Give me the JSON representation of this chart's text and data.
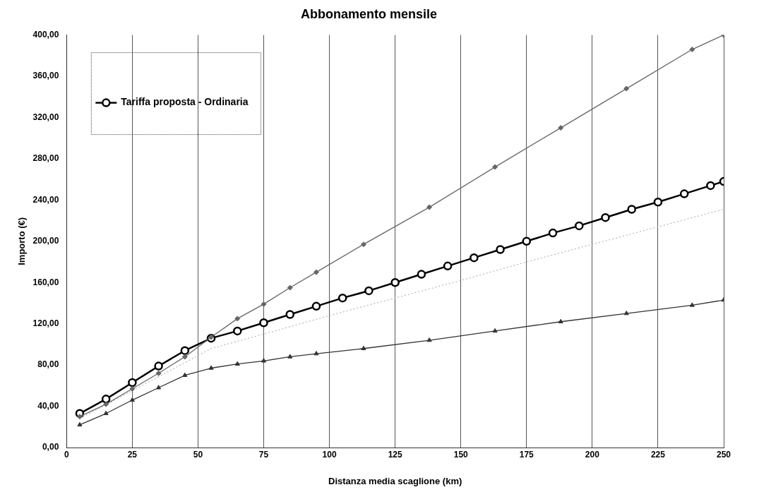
{
  "chart_data": {
    "type": "line",
    "title": "Abbonamento mensile",
    "xlabel": "Distanza media scaglione (km)",
    "ylabel": "Importo (€)",
    "xlim": [
      0,
      250
    ],
    "xticks": [
      0,
      25,
      50,
      75,
      100,
      125,
      150,
      175,
      200,
      225,
      250
    ],
    "ylim": [
      0,
      400
    ],
    "yticks": [
      {
        "value": 0,
        "label": "0,00"
      },
      {
        "value": 40,
        "label": "40,00"
      },
      {
        "value": 80,
        "label": "80,00"
      },
      {
        "value": 120,
        "label": "120,00"
      },
      {
        "value": 160,
        "label": "160,00"
      },
      {
        "value": 200,
        "label": "200,00"
      },
      {
        "value": 240,
        "label": "240,00"
      },
      {
        "value": 280,
        "label": "280,00"
      },
      {
        "value": 320,
        "label": "320,00"
      },
      {
        "value": 360,
        "label": "360,00"
      },
      {
        "value": 400,
        "label": "400,00"
      }
    ],
    "grid": "x",
    "legend": "top left",
    "series": [
      {
        "color": "#666666",
        "marker": "diamond",
        "x": [
          5,
          15,
          25,
          35,
          45,
          55,
          65,
          75,
          85,
          95,
          113,
          138,
          163,
          188,
          213,
          238,
          250
        ],
        "values": [
          30,
          42,
          57,
          72,
          88,
          107,
          125,
          139,
          155,
          170,
          197,
          233,
          272,
          310,
          348,
          386,
          400
        ]
      },
      {
        "color": "#333333",
        "marker": "triangle",
        "x": [
          5,
          15,
          25,
          35,
          45,
          55,
          65,
          75,
          85,
          95,
          113,
          138,
          163,
          188,
          213,
          238,
          250
        ],
        "values": [
          22,
          33,
          46,
          58,
          70,
          77,
          81,
          84,
          88,
          91,
          96,
          104,
          113,
          122,
          130,
          138,
          143
        ]
      },
      {
        "name": "Tariffa proposta - Ordinaria",
        "color": "#000000",
        "marker": "circle",
        "x": [
          5,
          15,
          25,
          35,
          45,
          55,
          65,
          75,
          85,
          95,
          105,
          115,
          125,
          135,
          145,
          155,
          165,
          175,
          185,
          195,
          205,
          215,
          225,
          235,
          245,
          250
        ],
        "values": [
          33,
          47,
          63,
          79,
          94,
          106,
          113,
          121,
          129,
          137,
          145,
          152,
          160,
          168,
          176,
          184,
          192,
          200,
          208,
          215,
          223,
          231,
          238,
          246,
          254,
          258
        ]
      },
      {
        "color": "#bbbbbb",
        "marker": "none",
        "line_style": "dotted",
        "x": [
          5,
          25,
          55,
          75,
          100,
          125,
          150,
          175,
          200,
          225,
          250
        ],
        "values": [
          28,
          55,
          96,
          110,
          128,
          145,
          162,
          180,
          197,
          214,
          231
        ]
      }
    ]
  }
}
